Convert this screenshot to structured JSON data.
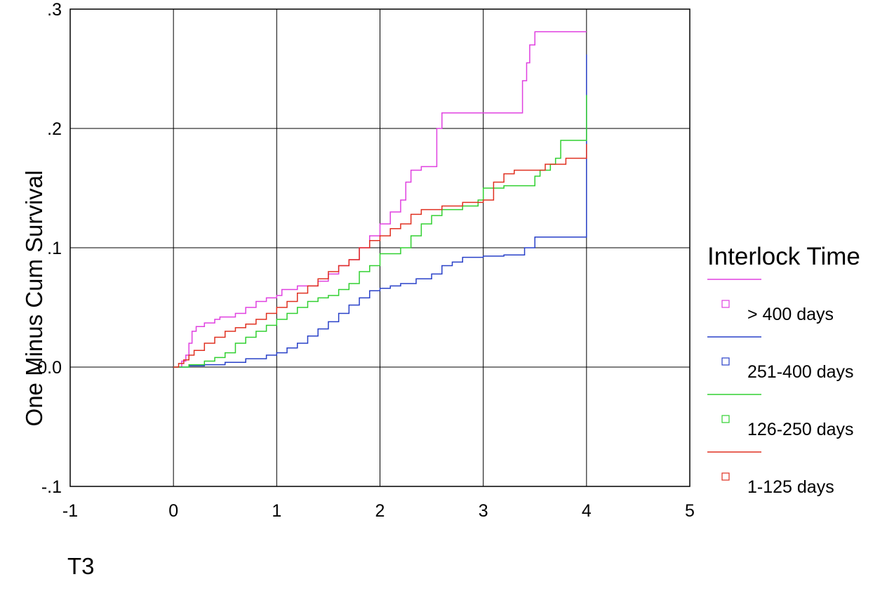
{
  "chart_data": {
    "type": "line",
    "step": true,
    "xlabel": "T3",
    "ylabel": "One Minus Cum Survival",
    "xlim": [
      -1,
      5
    ],
    "ylim": [
      -0.1,
      0.3
    ],
    "x_ticks": [
      -1,
      0,
      1,
      2,
      3,
      4,
      5
    ],
    "x_tick_labels": [
      "-1",
      "0",
      "1",
      "2",
      "3",
      "4",
      "5"
    ],
    "y_ticks": [
      -0.1,
      0.0,
      0.1,
      0.2,
      0.3
    ],
    "y_tick_labels": [
      "-.1",
      "0.0",
      ".1",
      ".2",
      ".3"
    ],
    "grid": true,
    "legend": {
      "title": "Interlock Time",
      "position": "right"
    },
    "series": [
      {
        "name": "> 400 days",
        "color": "#e040e0",
        "x": [
          0,
          0.08,
          0.12,
          0.15,
          0.18,
          0.22,
          0.3,
          0.4,
          0.45,
          0.6,
          0.7,
          0.8,
          0.9,
          1.0,
          1.05,
          1.2,
          1.4,
          1.5,
          1.6,
          1.7,
          1.8,
          1.9,
          2.0,
          2.1,
          2.2,
          2.25,
          2.3,
          2.4,
          2.55,
          2.6,
          3.0,
          3.38,
          3.42,
          3.45,
          3.5,
          4.0
        ],
        "y": [
          0,
          0.005,
          0.01,
          0.02,
          0.03,
          0.034,
          0.037,
          0.04,
          0.042,
          0.045,
          0.05,
          0.055,
          0.058,
          0.06,
          0.065,
          0.068,
          0.072,
          0.078,
          0.085,
          0.09,
          0.1,
          0.11,
          0.12,
          0.13,
          0.14,
          0.155,
          0.165,
          0.168,
          0.2,
          0.213,
          0.213,
          0.24,
          0.255,
          0.27,
          0.281,
          0.281
        ]
      },
      {
        "name": "251-400 days",
        "color": "#2840c8",
        "x": [
          0,
          0.15,
          0.3,
          0.5,
          0.7,
          0.9,
          1.0,
          1.1,
          1.2,
          1.3,
          1.4,
          1.5,
          1.6,
          1.7,
          1.8,
          1.9,
          2.0,
          2.1,
          2.2,
          2.35,
          2.5,
          2.6,
          2.7,
          2.8,
          3.0,
          3.2,
          3.4,
          3.5,
          4.0,
          4.0
        ],
        "y": [
          0,
          0.001,
          0.002,
          0.004,
          0.007,
          0.01,
          0.012,
          0.016,
          0.02,
          0.026,
          0.032,
          0.038,
          0.045,
          0.052,
          0.058,
          0.064,
          0.066,
          0.068,
          0.07,
          0.074,
          0.078,
          0.085,
          0.088,
          0.092,
          0.093,
          0.094,
          0.1,
          0.109,
          0.109,
          0.262
        ]
      },
      {
        "name": "126-250 days",
        "color": "#30d030",
        "x": [
          0,
          0.15,
          0.3,
          0.4,
          0.5,
          0.6,
          0.7,
          0.8,
          0.9,
          1.0,
          1.1,
          1.2,
          1.3,
          1.4,
          1.5,
          1.6,
          1.7,
          1.8,
          1.9,
          2.0,
          2.2,
          2.3,
          2.4,
          2.5,
          2.6,
          2.8,
          2.95,
          3.0,
          3.2,
          3.3,
          3.5,
          3.55,
          3.65,
          3.7,
          3.75,
          4.0,
          4.0
        ],
        "y": [
          0,
          0.002,
          0.005,
          0.008,
          0.012,
          0.02,
          0.025,
          0.03,
          0.035,
          0.04,
          0.045,
          0.05,
          0.055,
          0.058,
          0.06,
          0.065,
          0.07,
          0.08,
          0.085,
          0.095,
          0.1,
          0.11,
          0.12,
          0.127,
          0.132,
          0.135,
          0.14,
          0.15,
          0.152,
          0.152,
          0.16,
          0.165,
          0.17,
          0.175,
          0.19,
          0.193,
          0.228
        ]
      },
      {
        "name": "1-125 days",
        "color": "#e03020",
        "x": [
          0,
          0.05,
          0.1,
          0.15,
          0.2,
          0.3,
          0.4,
          0.5,
          0.6,
          0.7,
          0.8,
          0.9,
          1.0,
          1.1,
          1.2,
          1.3,
          1.4,
          1.5,
          1.6,
          1.7,
          1.8,
          1.9,
          2.0,
          2.1,
          2.2,
          2.3,
          2.4,
          2.6,
          2.8,
          3.0,
          3.1,
          3.2,
          3.3,
          3.5,
          3.6,
          3.8,
          4.0
        ],
        "y": [
          0,
          0.003,
          0.006,
          0.01,
          0.014,
          0.02,
          0.025,
          0.03,
          0.033,
          0.036,
          0.04,
          0.045,
          0.05,
          0.055,
          0.062,
          0.068,
          0.074,
          0.08,
          0.085,
          0.09,
          0.1,
          0.106,
          0.11,
          0.116,
          0.12,
          0.128,
          0.132,
          0.135,
          0.138,
          0.14,
          0.155,
          0.162,
          0.165,
          0.165,
          0.17,
          0.175,
          0.187
        ]
      }
    ]
  }
}
